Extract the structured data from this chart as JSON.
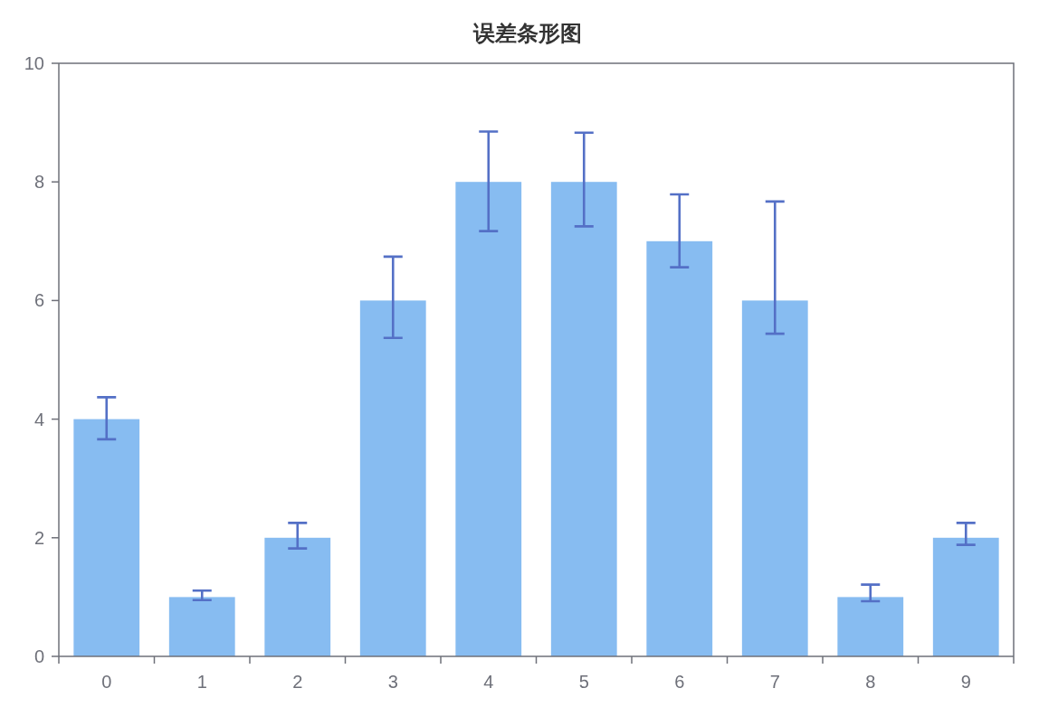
{
  "chart_data": {
    "type": "bar",
    "title": "误差条形图",
    "categories": [
      "0",
      "1",
      "2",
      "3",
      "4",
      "5",
      "6",
      "7",
      "8",
      "9"
    ],
    "values": [
      4,
      1,
      2,
      6,
      8,
      8,
      7,
      6,
      1,
      2
    ],
    "color": "#87bcf1",
    "errors": [
      [
        3.66,
        4.37
      ],
      [
        0.95,
        1.11
      ],
      [
        1.82,
        2.25
      ],
      [
        5.37,
        6.74
      ],
      [
        7.17,
        8.85
      ],
      [
        7.25,
        8.83
      ],
      [
        6.56,
        7.79
      ],
      [
        5.44,
        7.67
      ],
      [
        0.93,
        1.21
      ],
      [
        1.88,
        2.25
      ]
    ],
    "ylim": [
      0,
      10
    ],
    "yticks": [
      0,
      2,
      4,
      6,
      8,
      10
    ],
    "grid": false
  }
}
